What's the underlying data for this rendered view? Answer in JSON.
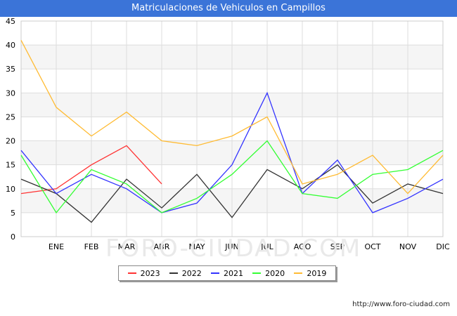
{
  "chart_data": {
    "type": "line",
    "title": "Matriculaciones de Vehiculos en Campillos",
    "xlabel": "",
    "ylabel": "",
    "categories": [
      "",
      "ENE",
      "FEB",
      "MAR",
      "ABR",
      "MAY",
      "JUN",
      "JUL",
      "AGO",
      "SEP",
      "OCT",
      "NOV",
      "DIC"
    ],
    "ylim": [
      0,
      45
    ],
    "yticks": [
      0,
      5,
      10,
      15,
      20,
      25,
      30,
      35,
      40,
      45
    ],
    "grid": true,
    "legend_position": "bottom-center",
    "series": [
      {
        "name": "2023",
        "color": "#ff3333",
        "values": [
          9,
          10,
          15,
          19,
          11,
          null,
          null,
          null,
          null,
          null,
          null,
          null,
          null
        ]
      },
      {
        "name": "2022",
        "color": "#333333",
        "values": [
          12,
          9,
          3,
          12,
          6,
          13,
          4,
          14,
          10,
          15,
          7,
          11,
          9
        ]
      },
      {
        "name": "2021",
        "color": "#3333ff",
        "values": [
          18,
          9,
          13,
          10,
          5,
          7,
          15,
          30,
          9,
          16,
          5,
          8,
          12
        ]
      },
      {
        "name": "2020",
        "color": "#33ff33",
        "values": [
          17,
          5,
          14,
          11,
          5,
          8,
          13,
          20,
          9,
          8,
          13,
          14,
          18
        ]
      },
      {
        "name": "2019",
        "color": "#ffbb33",
        "values": [
          41,
          27,
          21,
          26,
          20,
          19,
          21,
          25,
          11,
          13,
          17,
          9,
          17
        ]
      }
    ]
  },
  "footer": {
    "url": "http://www.foro-ciudad.com"
  },
  "watermark": {
    "text": "FORO-CIUDAD.COM"
  }
}
